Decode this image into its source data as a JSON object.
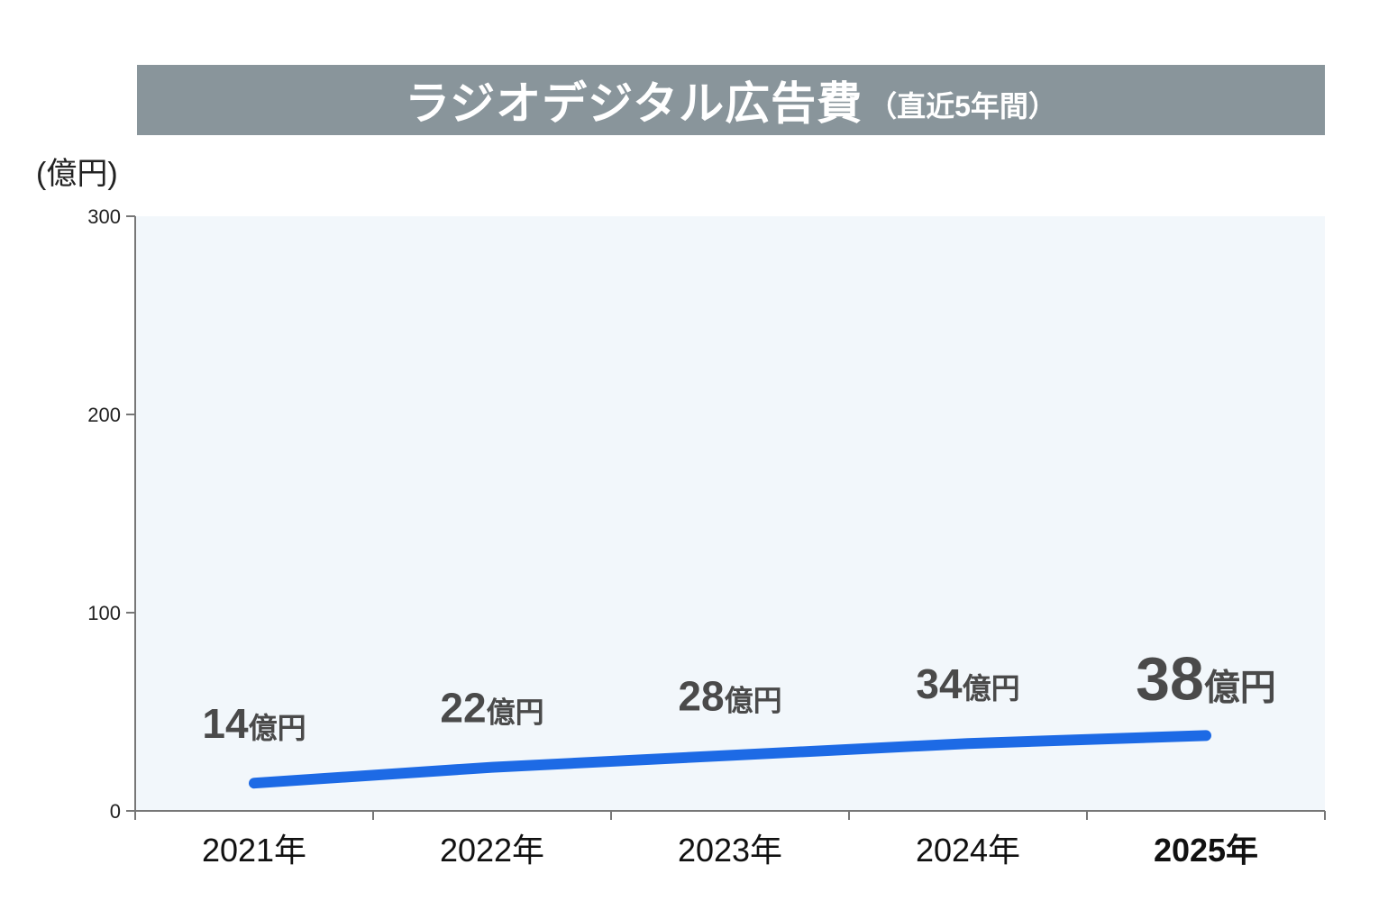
{
  "title": {
    "main": "ラジオデジタル広告費",
    "sub": "（直近5年間）"
  },
  "unit_label": "(億円)",
  "colors": {
    "title_bar": "#89959b",
    "plot_bg": "#f2f7fb",
    "line": "#1d6ae5",
    "highlight": "#d6173f",
    "label": "#4a4a4a"
  },
  "chart_data": {
    "type": "line",
    "categories": [
      "2021年",
      "2022年",
      "2023年",
      "2024年",
      "2025年"
    ],
    "series": [
      {
        "values": [
          14,
          22,
          28,
          34,
          38
        ]
      }
    ],
    "data_labels": [
      {
        "number": "14",
        "unit": "億円"
      },
      {
        "number": "22",
        "unit": "億円"
      },
      {
        "number": "28",
        "unit": "億円"
      },
      {
        "number": "34",
        "unit": "億円"
      },
      {
        "number": "38",
        "unit": "億円"
      }
    ],
    "highlight_index": 4,
    "yticks": [
      0,
      100,
      200,
      300
    ],
    "ylim": [
      0,
      300
    ],
    "grid": false,
    "legend": "none"
  }
}
